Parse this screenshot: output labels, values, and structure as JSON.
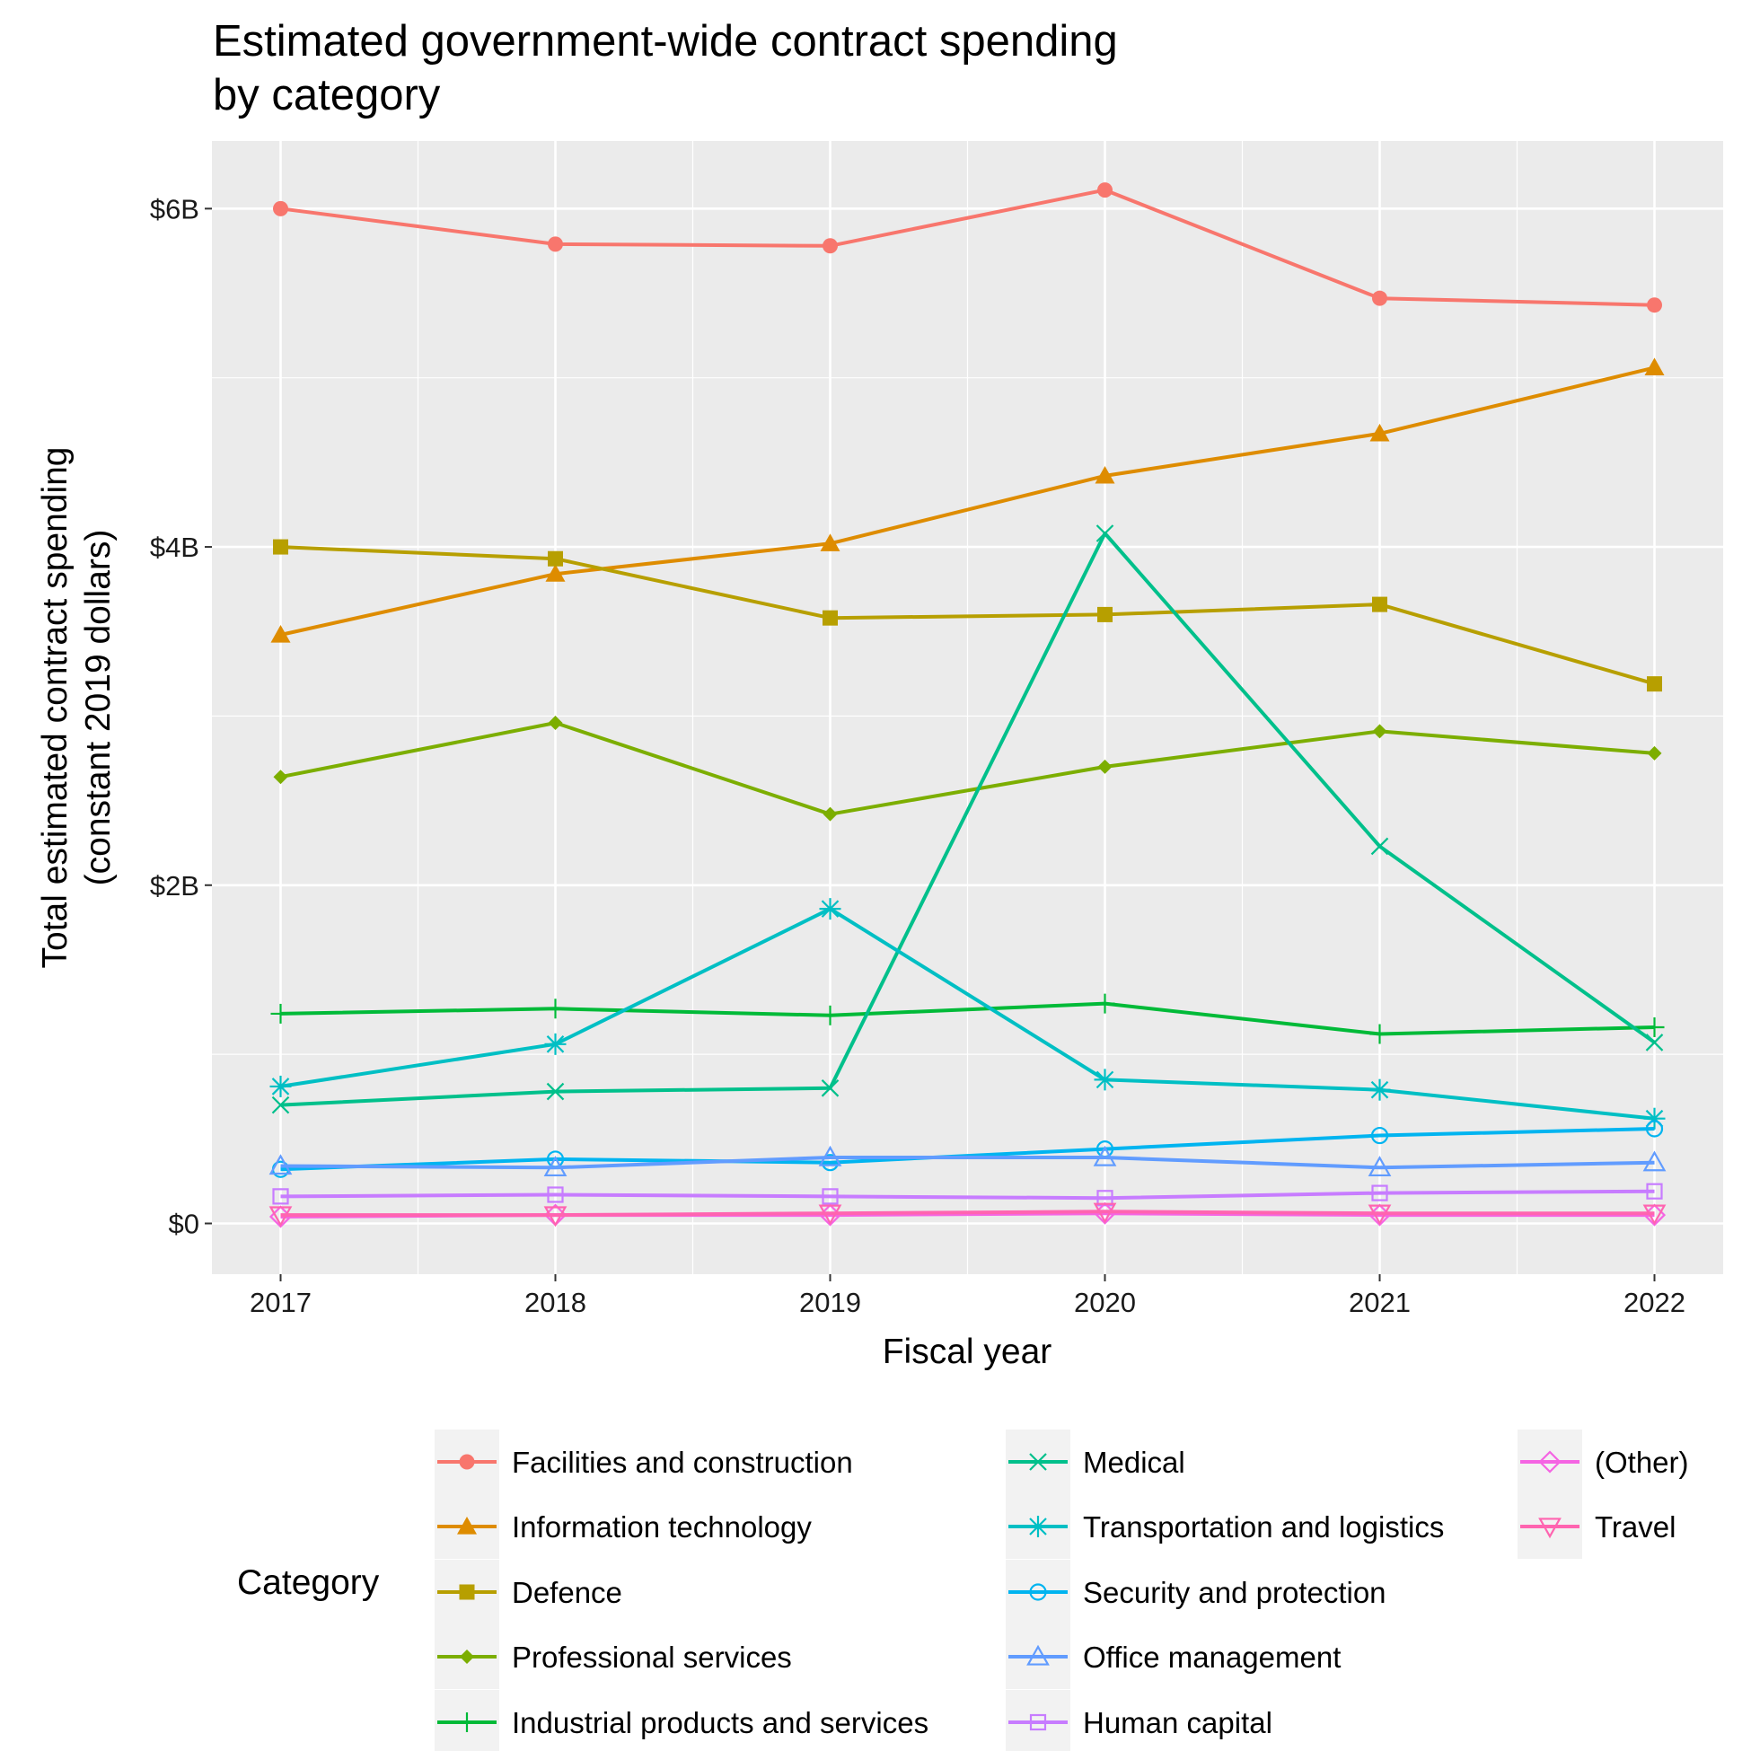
{
  "chart_data": {
    "type": "line",
    "title": "Estimated government-wide contract spending",
    "subtitle": "by category",
    "xlabel": "Fiscal year",
    "ylabel": "Total estimated contract spending",
    "ylabel_line2": "(constant 2019 dollars)",
    "x": [
      2017,
      2018,
      2019,
      2020,
      2021,
      2022
    ],
    "xlim": [
      2016.75,
      2022.25
    ],
    "ylim": [
      -0.3,
      6.4
    ],
    "y_unit": "billions of dollars",
    "y_ticks": [
      {
        "value": 0,
        "label": "$0"
      },
      {
        "value": 2,
        "label": "$2B"
      },
      {
        "value": 4,
        "label": "$4B"
      },
      {
        "value": 6,
        "label": "$6B"
      }
    ],
    "grid": true,
    "legend_title": "Category",
    "legend_position": "bottom",
    "series": [
      {
        "name": "Facilities and construction",
        "color": "#F8766D",
        "marker": "filled-circle",
        "values": [
          6.0,
          5.79,
          5.78,
          6.11,
          5.47,
          5.43
        ]
      },
      {
        "name": "Information technology",
        "color": "#DE8C00",
        "marker": "filled-triangle",
        "values": [
          3.48,
          3.84,
          4.02,
          4.42,
          4.67,
          5.06
        ]
      },
      {
        "name": "Defence",
        "color": "#B79F00",
        "marker": "filled-square",
        "values": [
          4.0,
          3.93,
          3.58,
          3.6,
          3.66,
          3.19
        ]
      },
      {
        "name": "Professional services",
        "color": "#7CAE00",
        "marker": "filled-diamond",
        "values": [
          2.64,
          2.96,
          2.42,
          2.7,
          2.91,
          2.78
        ]
      },
      {
        "name": "Industrial products and services",
        "color": "#00BA38",
        "marker": "plus",
        "values": [
          1.24,
          1.27,
          1.23,
          1.3,
          1.12,
          1.16
        ]
      },
      {
        "name": "Medical",
        "color": "#00C08B",
        "marker": "x",
        "values": [
          0.7,
          0.78,
          0.8,
          4.08,
          2.23,
          1.07
        ]
      },
      {
        "name": "Transportation and logistics",
        "color": "#00BFC4",
        "marker": "asterisk",
        "values": [
          0.81,
          1.06,
          1.86,
          0.85,
          0.79,
          0.62
        ]
      },
      {
        "name": "Security and protection",
        "color": "#00B4F0",
        "marker": "open-circle",
        "values": [
          0.32,
          0.38,
          0.36,
          0.44,
          0.52,
          0.56
        ]
      },
      {
        "name": "Office management",
        "color": "#619CFF",
        "marker": "open-triangle",
        "values": [
          0.34,
          0.33,
          0.39,
          0.39,
          0.33,
          0.36
        ]
      },
      {
        "name": "Human capital",
        "color": "#C77CFF",
        "marker": "open-square",
        "values": [
          0.16,
          0.17,
          0.16,
          0.15,
          0.18,
          0.19
        ]
      },
      {
        "name": "(Other)",
        "color": "#F564E3",
        "marker": "open-diamond",
        "values": [
          0.04,
          0.05,
          0.05,
          0.06,
          0.05,
          0.05
        ]
      },
      {
        "name": "Travel",
        "color": "#FF64B0",
        "marker": "open-triangle-down",
        "values": [
          0.05,
          0.05,
          0.06,
          0.07,
          0.06,
          0.06
        ]
      }
    ]
  }
}
